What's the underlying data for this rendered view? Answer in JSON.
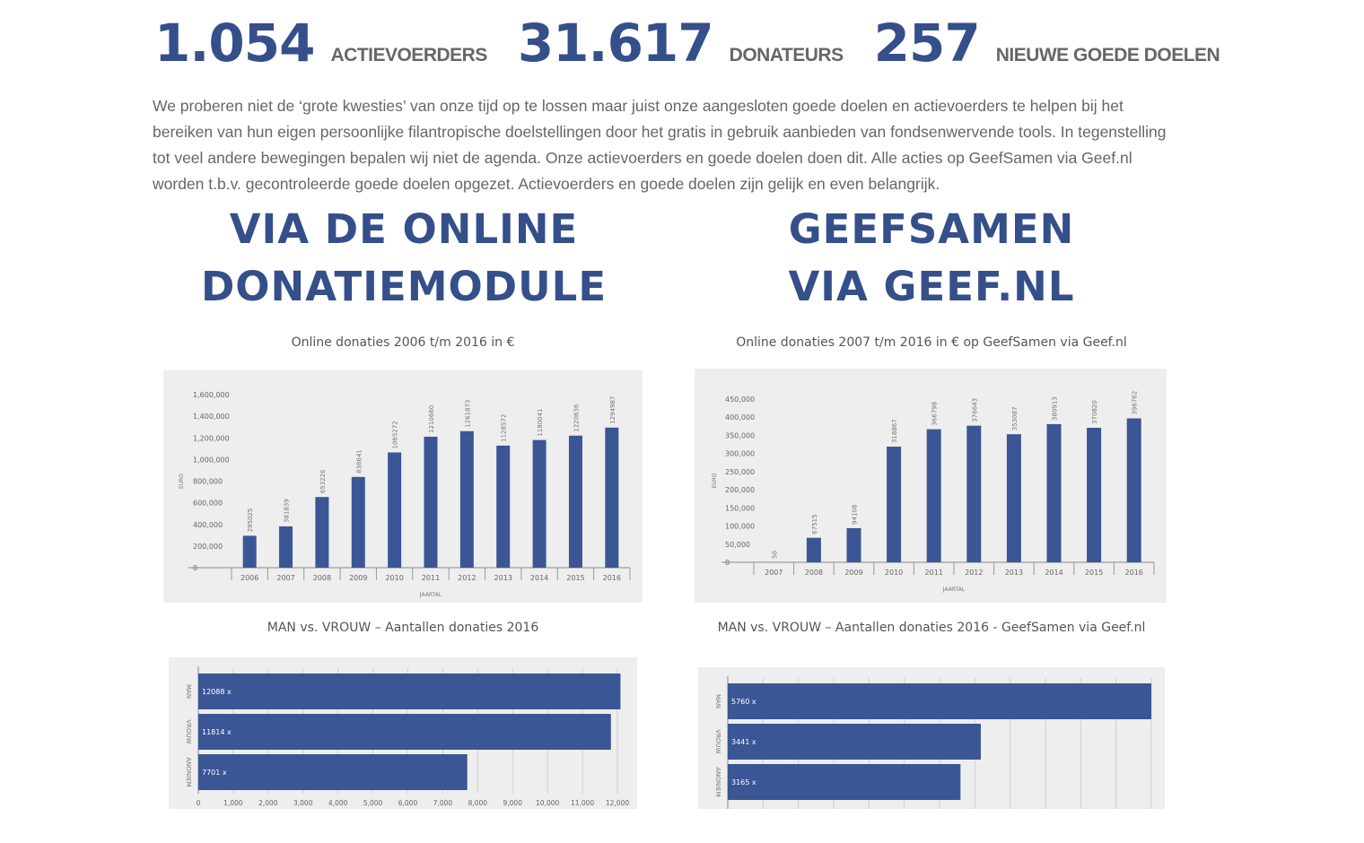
{
  "stats": [
    {
      "number": "1.054",
      "label": "ACTIEVOERDERS"
    },
    {
      "number": "31.617",
      "label": "DONATEURS"
    },
    {
      "number": "257",
      "label": "NIEUWE GOEDE DOELEN"
    }
  ],
  "intro": "We proberen niet de ‘grote kwesties’ van onze tijd op te lossen maar juist onze aangesloten goede doelen en actievoerders te helpen bij het bereiken van hun eigen persoonlijke filantropische doelstellingen door het gratis in gebruik aanbieden van fondsenwervende tools. In tegenstelling tot veel andere bewegingen bepalen wij niet de agenda. Onze actievoerders en goede doelen doen dit. Alle acties op GeefSamen via Geef.nl worden t.b.v. gecontroleerde goede doelen opgezet. Actievoerders en goede doelen zijn gelijk en even belangrijk.",
  "left": {
    "heading1": "VIA DE ONLINE",
    "heading2": "DONATIEMODULE",
    "chart_caption": "Online donaties 2006 t/m 2016 in €",
    "bar_caption": "MAN vs. VROUW – Aantallen donaties 2016"
  },
  "right": {
    "heading1": "GEEFSAMEN",
    "heading2": "VIA GEEF.NL",
    "chart_caption": "Online donaties 2007 t/m 2016 in € op GeefSamen via Geef.nl",
    "bar_caption": "MAN vs. VROUW – Aantallen donaties 2016 - GeefSamen via Geef.nl"
  },
  "chart_data": [
    {
      "type": "bar",
      "title": "Online donaties 2006 t/m 2016 in €",
      "xlabel": "JAARTAL",
      "ylabel": "EURO",
      "categories": [
        "2006",
        "2007",
        "2008",
        "2009",
        "2010",
        "2011",
        "2012",
        "2013",
        "2014",
        "2015",
        "2016"
      ],
      "values": [
        295025,
        381839,
        653226,
        838641,
        1065272,
        1210660,
        1261873,
        1128572,
        1180041,
        1220636,
        1294987
      ],
      "data_labels": [
        "295025",
        "381839",
        "653226",
        "838641",
        "1065272",
        "1210660",
        "1261873",
        "1128572",
        "1180041",
        "1220636",
        "1294987"
      ],
      "ylim": [
        0,
        1600000
      ],
      "yticks": [
        "0",
        "200,000",
        "400,000",
        "600,000",
        "800,000",
        "1,000,000",
        "1,200,000",
        "1,400,000",
        "1,600,000"
      ],
      "grid": false,
      "bar_color": "#3b5694"
    },
    {
      "type": "bar",
      "title": "Online donaties 2007 t/m 2016 in € op GeefSamen via Geef.nl",
      "xlabel": "JAARTAL",
      "ylabel": "EURO",
      "categories": [
        "2007",
        "2008",
        "2009",
        "2010",
        "2011",
        "2012",
        "2013",
        "2014",
        "2015",
        "2016"
      ],
      "values": [
        50,
        67515,
        94108,
        318867,
        366798,
        376643,
        353087,
        380913,
        370820,
        396762
      ],
      "data_labels": [
        "50",
        "67515",
        "94108",
        "318867",
        "366798",
        "376643",
        "353087",
        "380913",
        "370820",
        "396762"
      ],
      "ylim": [
        0,
        450000
      ],
      "yticks": [
        "0",
        "50,000",
        "100,000",
        "150,000",
        "200,000",
        "250,000",
        "300,000",
        "350,000",
        "400,000",
        "450,000"
      ],
      "grid": false,
      "bar_color": "#3b5694"
    },
    {
      "type": "bar",
      "orientation": "horizontal",
      "title": "MAN vs. VROUW – Aantallen donaties 2016",
      "categories": [
        "MAN",
        "VROUW",
        "ANONIEM"
      ],
      "values": [
        12088,
        11814,
        7701
      ],
      "data_labels": [
        "12088 x",
        "11814 x",
        "7701 x"
      ],
      "xlim": [
        0,
        12000
      ],
      "xticks": [
        "0",
        "1,000",
        "2,000",
        "3,000",
        "4,000",
        "5,000",
        "6,000",
        "7,000",
        "8,000",
        "9,000",
        "10,000",
        "11,000",
        "12,000"
      ],
      "grid": true,
      "bar_color": "#3b5694"
    },
    {
      "type": "bar",
      "orientation": "horizontal",
      "title": "MAN vs. VROUW – Aantallen donaties 2016 - GeefSamen via Geef.nl",
      "categories": [
        "MAN",
        "VROUW",
        "ANONIEM"
      ],
      "values": [
        5760,
        3441,
        3165
      ],
      "data_labels": [
        "5760 x",
        "3441 x",
        "3165 x"
      ],
      "xlim": [
        0,
        5760
      ],
      "grid": true,
      "bar_color": "#3b5694"
    }
  ]
}
